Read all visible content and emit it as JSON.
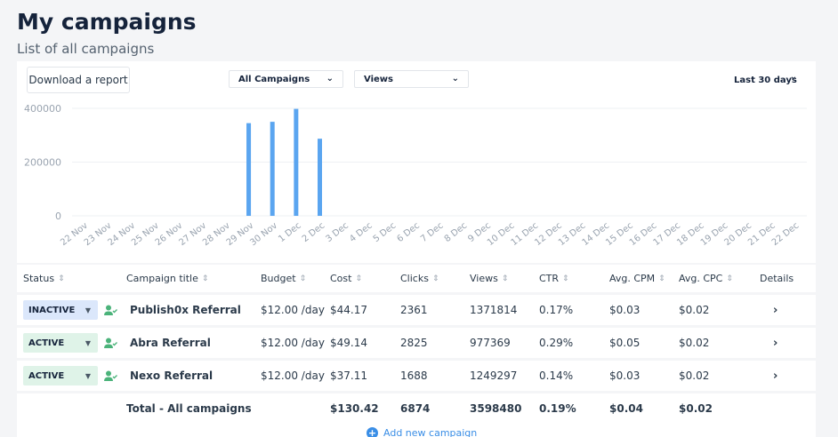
{
  "header": {
    "title": "My campaigns",
    "subtitle": "List of all campaigns"
  },
  "toolbar": {
    "download_label": "Download a report",
    "campaign_filter": "All Campaigns",
    "metric": "Views",
    "date_range": "Last 30 days"
  },
  "chart_data": {
    "type": "bar",
    "categories": [
      "22 Nov",
      "23 Nov",
      "24 Nov",
      "25 Nov",
      "26 Nov",
      "27 Nov",
      "28 Nov",
      "29 Nov",
      "30 Nov",
      "1 Dec",
      "2 Dec",
      "3 Dec",
      "4 Dec",
      "5 Dec",
      "6 Dec",
      "7 Dec",
      "8 Dec",
      "9 Dec",
      "10 Dec",
      "11 Dec",
      "12 Dec",
      "13 Dec",
      "14 Dec",
      "15 Dec",
      "16 Dec",
      "17 Dec",
      "18 Dec",
      "19 Dec",
      "20 Dec",
      "21 Dec",
      "22 Dec"
    ],
    "values": [
      0,
      0,
      0,
      0,
      0,
      0,
      0,
      345000,
      350000,
      398000,
      287000,
      0,
      0,
      0,
      0,
      0,
      0,
      0,
      0,
      0,
      0,
      0,
      0,
      0,
      0,
      0,
      0,
      0,
      0,
      0,
      0
    ],
    "yticks": [
      "400000",
      "200000",
      "0"
    ],
    "ylim": [
      0,
      400000
    ],
    "grid": true,
    "bar_color": "#5aa5f0"
  },
  "table": {
    "columns": [
      "Status",
      "Campaign title",
      "Budget",
      "Cost",
      "Clicks",
      "Views",
      "CTR",
      "Avg. CPM",
      "Avg. CPC",
      "Details"
    ],
    "rows": [
      {
        "status": "INACTIVE",
        "title": "Publish0x Referral",
        "budget": "$12.00 /day",
        "cost": "$44.17",
        "clicks": "2361",
        "views": "1371814",
        "ctr": "0.17%",
        "cpm": "$0.03",
        "cpc": "$0.02"
      },
      {
        "status": "ACTIVE",
        "title": "Abra Referral",
        "budget": "$12.00 /day",
        "cost": "$49.14",
        "clicks": "2825",
        "views": "977369",
        "ctr": "0.29%",
        "cpm": "$0.05",
        "cpc": "$0.02"
      },
      {
        "status": "ACTIVE",
        "title": "Nexo Referral",
        "budget": "$12.00 /day",
        "cost": "$37.11",
        "clicks": "1688",
        "views": "1249297",
        "ctr": "0.14%",
        "cpm": "$0.03",
        "cpc": "$0.02"
      }
    ],
    "total": {
      "label": "Total - All campaigns",
      "cost": "$130.42",
      "clicks": "6874",
      "views": "3598480",
      "ctr": "0.19%",
      "cpm": "$0.04",
      "cpc": "$0.02"
    }
  },
  "footer": {
    "add_label": "Add new campaign"
  },
  "icons": {
    "sort": "sort-icon",
    "dropdown": "chevron-down-icon",
    "user": "user-check-icon",
    "details": "chevron-right-icon",
    "add": "plus-circle-icon"
  }
}
